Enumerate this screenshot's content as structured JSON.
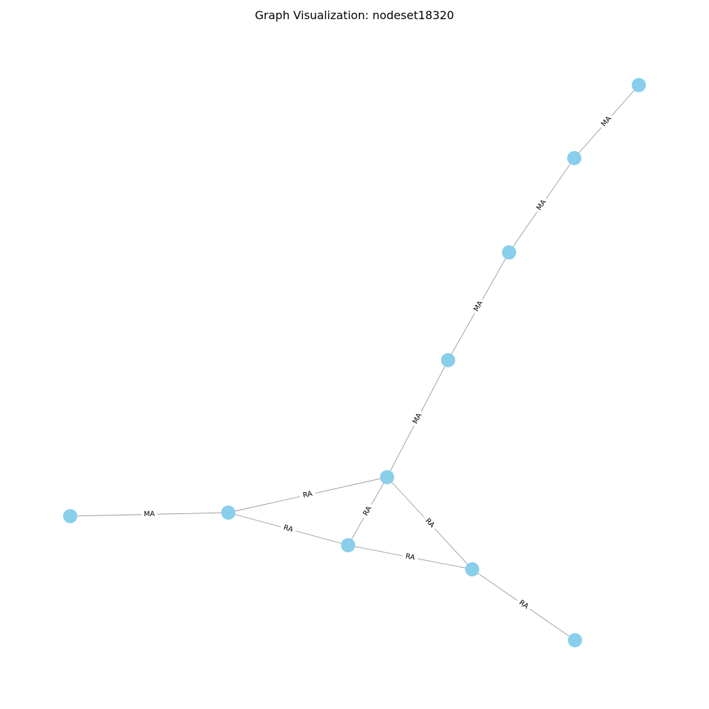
{
  "title": "Graph Visualization: nodeset18320",
  "colors": {
    "node": "#89CFEB",
    "edge": "#999999",
    "label_text": "#000000",
    "label_bg": "#ffffff"
  },
  "nodes": [
    {
      "id": "n1"
    },
    {
      "id": "n2"
    },
    {
      "id": "n3"
    },
    {
      "id": "n4"
    },
    {
      "id": "n5"
    },
    {
      "id": "n6"
    },
    {
      "id": "n7"
    },
    {
      "id": "n8"
    },
    {
      "id": "n9"
    },
    {
      "id": "n10"
    }
  ],
  "edges": [
    {
      "source": "n1",
      "target": "n2",
      "label": "MA"
    },
    {
      "source": "n2",
      "target": "n3",
      "label": "MA"
    },
    {
      "source": "n3",
      "target": "n4",
      "label": "MA"
    },
    {
      "source": "n4",
      "target": "n5",
      "label": "MA"
    },
    {
      "source": "n5",
      "target": "n6",
      "label": "RA"
    },
    {
      "source": "n5",
      "target": "n7",
      "label": "RA"
    },
    {
      "source": "n5",
      "target": "n8",
      "label": "RA"
    },
    {
      "source": "n6",
      "target": "n9",
      "label": "MA"
    },
    {
      "source": "n6",
      "target": "n7",
      "label": "RA"
    },
    {
      "source": "n7",
      "target": "n8",
      "label": "RA"
    },
    {
      "source": "n8",
      "target": "n10",
      "label": "RA"
    }
  ]
}
